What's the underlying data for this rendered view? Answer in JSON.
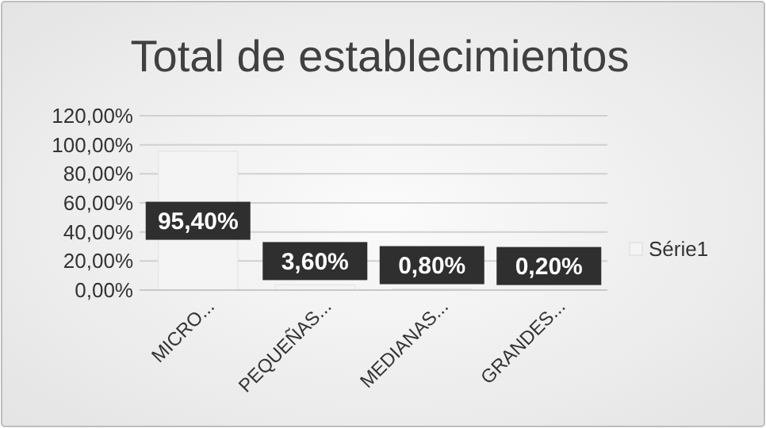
{
  "chart_data": {
    "type": "bar",
    "title": "Total de establecimientos",
    "categories": [
      "MICRO...",
      "PEQUEÑAS...",
      "MEDIANAS...",
      "GRANDES..."
    ],
    "series": [
      {
        "name": "Série1",
        "color": "#f4f4f4",
        "values": [
          95.4,
          3.6,
          0.8,
          0.2
        ],
        "value_labels": [
          "95,40%",
          "3,60%",
          "0,80%",
          "0,20%"
        ]
      }
    ],
    "ylim": [
      0,
      120
    ],
    "yticks": [
      {
        "value": 0,
        "label": "0,00%"
      },
      {
        "value": 20,
        "label": "20,00%"
      },
      {
        "value": 40,
        "label": "40,00%"
      },
      {
        "value": 60,
        "label": "60,00%"
      },
      {
        "value": 80,
        "label": "80,00%"
      },
      {
        "value": 100,
        "label": "100,00%"
      },
      {
        "value": 120,
        "label": "120,00%"
      }
    ],
    "grid": "y",
    "legend": "right"
  }
}
